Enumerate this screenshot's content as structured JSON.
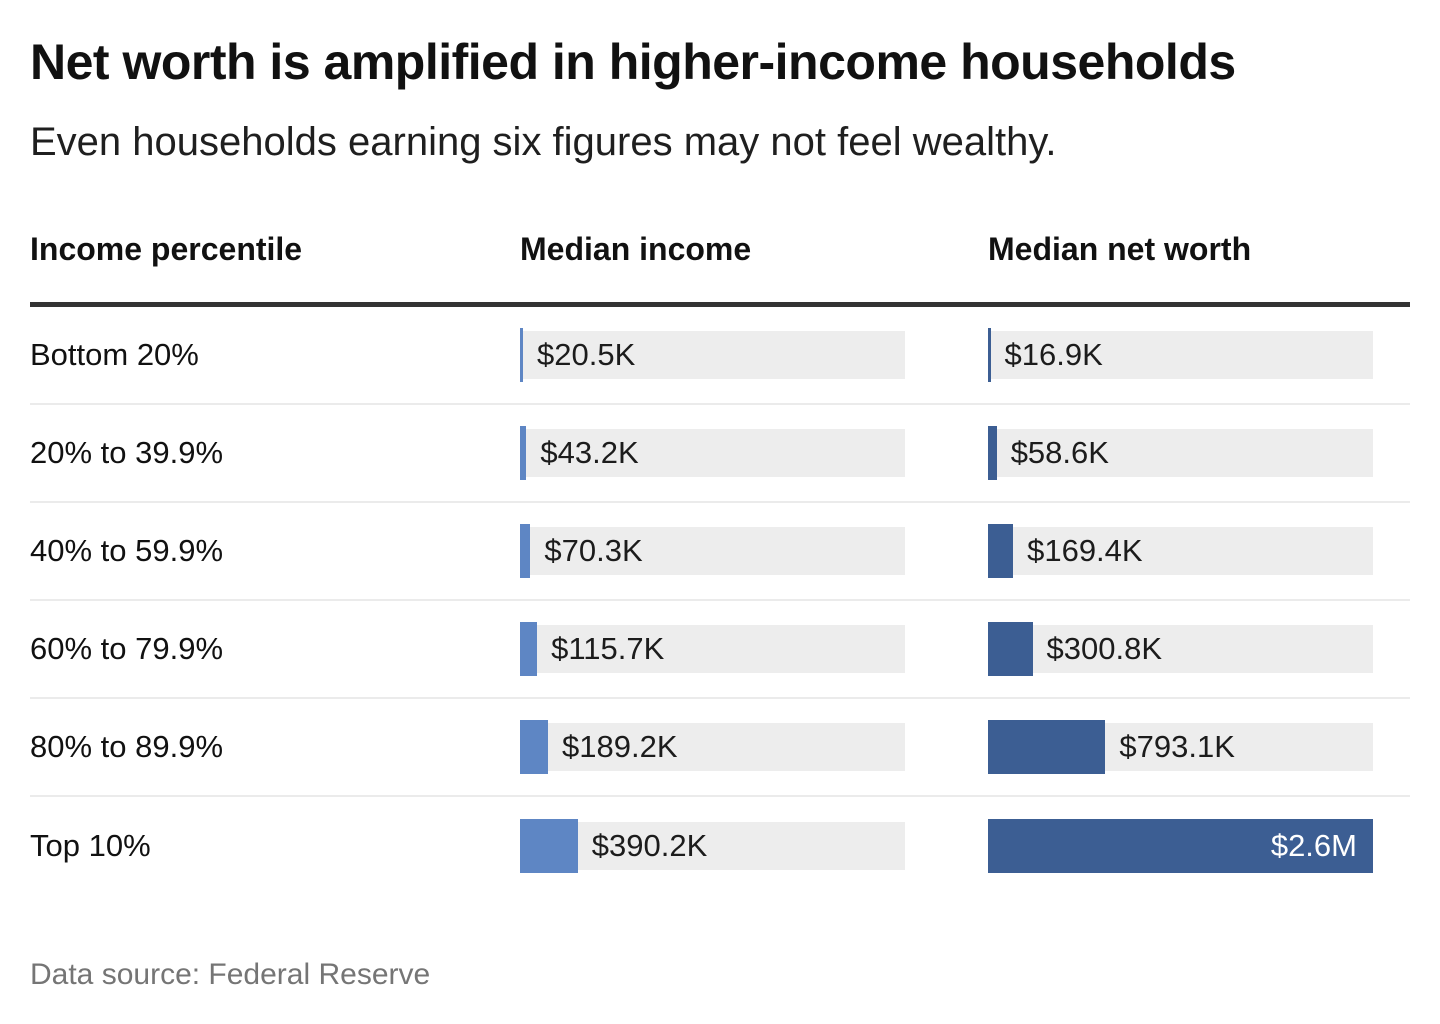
{
  "title": "Net worth is amplified in higher-income households",
  "subtitle": "Even households earning six figures may not feel wealthy.",
  "source": "Data source: Federal Reserve",
  "columns": {
    "percentile": "Income percentile",
    "income": "Median income",
    "net_worth": "Median net worth"
  },
  "colors": {
    "income_bar": "#5e86c4",
    "net_worth_bar": "#3c5e93",
    "bar_track": "#ededed",
    "thick_rule": "#333333",
    "row_separator": "#ebebeb",
    "source_text": "#757575"
  },
  "chart_data": {
    "type": "bar",
    "title": "Net worth is amplified in higher-income households",
    "subtitle": "Even households earning six figures may not feel wealthy.",
    "source": "Data source: Federal Reserve",
    "categories": [
      "Bottom 20%",
      "20% to 39.9%",
      "40% to 59.9%",
      "60% to 79.9%",
      "80% to 89.9%",
      "Top 10%"
    ],
    "series": [
      {
        "name": "Median income",
        "values": [
          20500,
          43200,
          70300,
          115700,
          189200,
          390200
        ],
        "labels": [
          "$20.5K",
          "$43.2K",
          "$70.3K",
          "$115.7K",
          "$189.2K",
          "$390.2K"
        ]
      },
      {
        "name": "Median net worth",
        "values": [
          16900,
          58600,
          169400,
          300800,
          793100,
          2600000
        ],
        "labels": [
          "$16.9K",
          "$58.6K",
          "$169.4K",
          "$300.8K",
          "$793.1K",
          "$2.6M"
        ]
      }
    ],
    "value_unit": "USD",
    "xlabel": "",
    "ylabel": "",
    "xmax": 2600000,
    "orientation": "horizontal",
    "grid": false,
    "legend_position": "column-headers",
    "layout": "each series rendered as a horizontal bar column with shared x scale; value labels right of bar, inside bar when full width"
  }
}
